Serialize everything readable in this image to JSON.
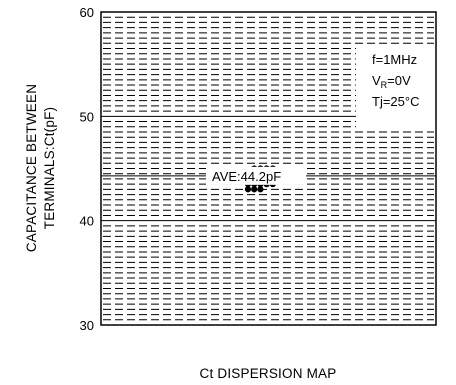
{
  "chart_data": {
    "type": "scatter",
    "title": "",
    "xlabel": "Ct DISPERSION MAP",
    "ylabel_lines": [
      "CAPACITANCE BETWEEN",
      "TERMINALS:Ct(pF)"
    ],
    "ylim": [
      30,
      60
    ],
    "y_ticks": [
      30,
      40,
      50,
      60
    ],
    "y_tick_labels": [
      "30",
      "40",
      "50",
      "60"
    ],
    "minor_grid_step": 1,
    "grid": "dashed-horizontal",
    "average": {
      "value": 44.2,
      "label": "AVE:44.2pF"
    },
    "conditions": {
      "line1": "f=1MHz",
      "line2_main": "V",
      "line2_sub": "R",
      "line2_rest": "=0V",
      "line3": "Tj=25°C"
    },
    "points": [
      {
        "x": 1,
        "y": 45
      },
      {
        "x": 2,
        "y": 45
      },
      {
        "x": 3,
        "y": 45
      },
      {
        "x": 4,
        "y": 45
      },
      {
        "x": 0,
        "y": 44
      },
      {
        "x": 1,
        "y": 44
      },
      {
        "x": 2,
        "y": 44
      },
      {
        "x": 3,
        "y": 44
      },
      {
        "x": 4,
        "y": 44
      },
      {
        "x": 0,
        "y": 43.5
      },
      {
        "x": 1,
        "y": 43.5
      },
      {
        "x": 2,
        "y": 43.5
      },
      {
        "x": 3,
        "y": 43.5
      },
      {
        "x": 4,
        "y": 43.5
      },
      {
        "x": 0,
        "y": 43
      },
      {
        "x": 1,
        "y": 43
      },
      {
        "x": 2,
        "y": 43
      }
    ]
  }
}
